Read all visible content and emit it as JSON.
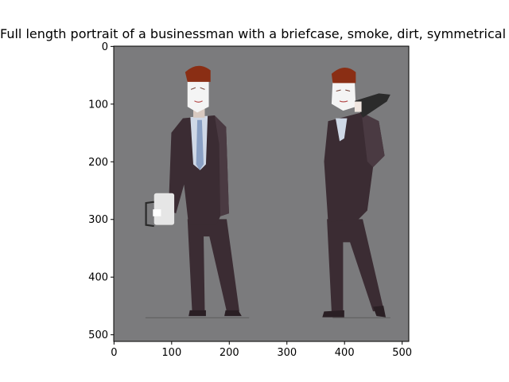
{
  "chart_data": {
    "type": "image",
    "title": "Full length portrait of a businessman with a briefcase,  smoke, dirt, symmetrical facial features, handsome, concept art",
    "xlabel": "",
    "ylabel": "",
    "xlim": [
      -0.5,
      511.5
    ],
    "ylim": [
      511.5,
      -0.5
    ],
    "x_ticks": [
      0,
      100,
      200,
      300,
      400,
      500
    ],
    "y_ticks": [
      0,
      100,
      200,
      300,
      400,
      500
    ],
    "grid": false,
    "image": {
      "background": "#7b7b7d",
      "subjects": [
        "businessman-with-briefcase",
        "businessman-on-phone"
      ],
      "colors": {
        "suit": "#3b2c33",
        "suit_highlight": "#4a3a42",
        "shirt": "#cfd8e6",
        "tie": "#8aa0c4",
        "hair": "#8a2e14",
        "face": "#f4f4f4",
        "briefcase": "#e6e6e6",
        "phone": "#2b2b2b"
      }
    }
  }
}
